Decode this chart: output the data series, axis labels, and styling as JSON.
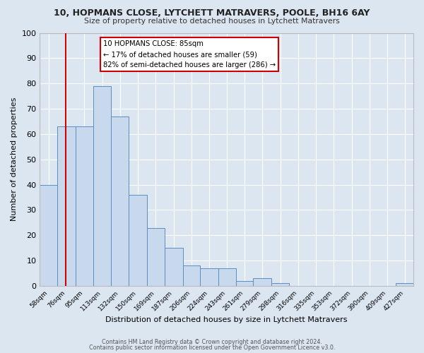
{
  "title": "10, HOPMANS CLOSE, LYTCHETT MATRAVERS, POOLE, BH16 6AY",
  "subtitle": "Size of property relative to detached houses in Lytchett Matravers",
  "xlabel": "Distribution of detached houses by size in Lytchett Matravers",
  "ylabel": "Number of detached properties",
  "bin_labels": [
    "58sqm",
    "76sqm",
    "95sqm",
    "113sqm",
    "132sqm",
    "150sqm",
    "169sqm",
    "187sqm",
    "206sqm",
    "224sqm",
    "243sqm",
    "261sqm",
    "279sqm",
    "298sqm",
    "316sqm",
    "335sqm",
    "353sqm",
    "372sqm",
    "390sqm",
    "409sqm",
    "427sqm"
  ],
  "bar_values": [
    40,
    63,
    63,
    79,
    67,
    36,
    23,
    15,
    8,
    7,
    7,
    2,
    3,
    1,
    0,
    0,
    0,
    0,
    0,
    0,
    1
  ],
  "bin_edges": [
    58,
    76,
    95,
    113,
    132,
    150,
    169,
    187,
    206,
    224,
    243,
    261,
    279,
    298,
    316,
    335,
    353,
    372,
    390,
    409,
    427,
    445
  ],
  "bar_color": "#c8d9ed",
  "bar_edge_color": "#5b8ec4",
  "property_size": 85,
  "red_line_color": "#cc0000",
  "annotation_line1": "10 HOPMANS CLOSE: 85sqm",
  "annotation_line2": "← 17% of detached houses are smaller (59)",
  "annotation_line3": "82% of semi-detached houses are larger (286) →",
  "annotation_box_color": "#ffffff",
  "annotation_box_edge_color": "#cc0000",
  "ylim": [
    0,
    100
  ],
  "yticks": [
    0,
    10,
    20,
    30,
    40,
    50,
    60,
    70,
    80,
    90,
    100
  ],
  "background_color": "#dce6f1",
  "grid_color": "#ffffff",
  "footer_line1": "Contains HM Land Registry data © Crown copyright and database right 2024.",
  "footer_line2": "Contains public sector information licensed under the Open Government Licence v3.0."
}
